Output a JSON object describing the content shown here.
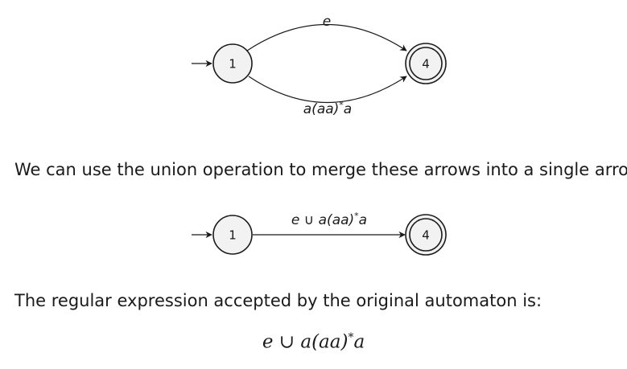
{
  "diagram_1": {
    "states": [
      {
        "id": "1",
        "label": "1",
        "start": true,
        "accepting": false
      },
      {
        "id": "4",
        "label": "4",
        "start": false,
        "accepting": true
      }
    ],
    "edges": [
      {
        "from": "1",
        "to": "4",
        "label": "e"
      },
      {
        "from": "1",
        "to": "4",
        "label": "a(aa)*a"
      }
    ]
  },
  "paragraph_1": "We can use the union operation to merge these arrows into a single arrow:",
  "diagram_2": {
    "states": [
      {
        "id": "1",
        "label": "1",
        "start": true,
        "accepting": false
      },
      {
        "id": "4",
        "label": "4",
        "start": false,
        "accepting": true
      }
    ],
    "edges": [
      {
        "from": "1",
        "to": "4",
        "label": "e ∪ a(aa)*a"
      }
    ]
  },
  "paragraph_2": "The regular expression accepted by the original automaton is:",
  "final_expression": "e ∪ a(aa)*a"
}
